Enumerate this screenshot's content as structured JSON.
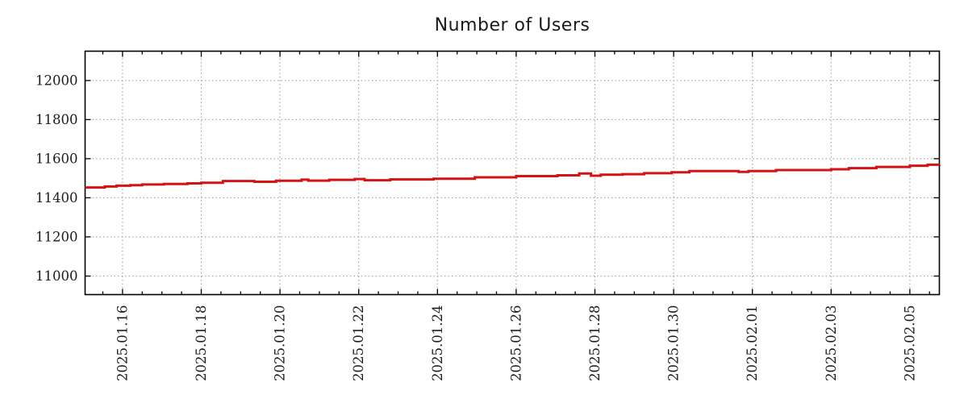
{
  "page": {
    "background": "#ffffff"
  },
  "chart_data": {
    "type": "line",
    "title": "Number of Users",
    "xlabel": "",
    "ylabel": "",
    "legend": null,
    "grid": true,
    "x_unit_days_since": "2025.01.15",
    "xlim": [
      0.05,
      21.75
    ],
    "ylim": [
      10905,
      12150
    ],
    "yticks": [
      11000,
      11200,
      11400,
      11600,
      11800,
      12000
    ],
    "xticks": [
      {
        "t": 1,
        "label": "2025.01.16"
      },
      {
        "t": 3,
        "label": "2025.01.18"
      },
      {
        "t": 5,
        "label": "2025.01.20"
      },
      {
        "t": 7,
        "label": "2025.01.22"
      },
      {
        "t": 9,
        "label": "2025.01.24"
      },
      {
        "t": 11,
        "label": "2025.01.26"
      },
      {
        "t": 13,
        "label": "2025.01.28"
      },
      {
        "t": 15,
        "label": "2025.01.30"
      },
      {
        "t": 17,
        "label": "2025.02.01"
      },
      {
        "t": 19,
        "label": "2025.02.03"
      },
      {
        "t": 21,
        "label": "2025.02.05"
      }
    ],
    "xtick_minor_step": 0.5,
    "line_color": "#d41414",
    "grid_color": "#a9a9a9",
    "axis_color": "#000000",
    "text_color": "#1c1c1c",
    "series": [
      {
        "name": "Number of Users",
        "step": "after",
        "points": [
          [
            0.05,
            11453
          ],
          [
            0.55,
            11458
          ],
          [
            0.85,
            11462
          ],
          [
            1.2,
            11465
          ],
          [
            1.5,
            11468
          ],
          [
            2.05,
            11471
          ],
          [
            2.65,
            11474
          ],
          [
            3.0,
            11477
          ],
          [
            3.55,
            11486
          ],
          [
            4.35,
            11482
          ],
          [
            4.9,
            11487
          ],
          [
            5.55,
            11493
          ],
          [
            5.72,
            11488
          ],
          [
            6.25,
            11492
          ],
          [
            6.9,
            11496
          ],
          [
            7.15,
            11490
          ],
          [
            7.8,
            11494
          ],
          [
            8.9,
            11498
          ],
          [
            9.95,
            11505
          ],
          [
            11.0,
            11511
          ],
          [
            12.05,
            11515
          ],
          [
            12.6,
            11524
          ],
          [
            12.9,
            11513
          ],
          [
            13.15,
            11518
          ],
          [
            13.7,
            11521
          ],
          [
            14.25,
            11526
          ],
          [
            14.95,
            11531
          ],
          [
            15.4,
            11537
          ],
          [
            16.65,
            11533
          ],
          [
            16.9,
            11537
          ],
          [
            17.6,
            11542
          ],
          [
            19.0,
            11546
          ],
          [
            19.45,
            11552
          ],
          [
            20.15,
            11558
          ],
          [
            21.0,
            11564
          ],
          [
            21.45,
            11569
          ],
          [
            21.75,
            11570
          ]
        ]
      }
    ]
  }
}
